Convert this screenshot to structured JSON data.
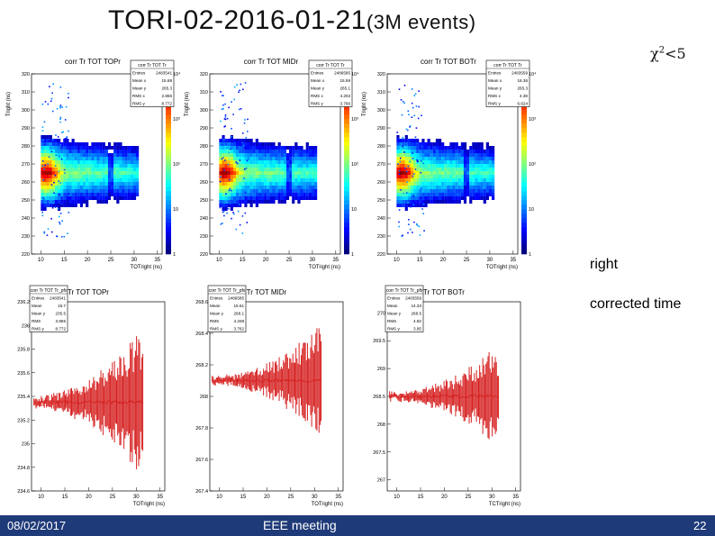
{
  "header": {
    "title_main": "TORI-02-2016-01-21",
    "title_sub": "(3M events)",
    "chi_text": "χ",
    "chi_sup": "2",
    "chi_rest": "<5"
  },
  "labels": {
    "right": "right",
    "corrected": "corrected time"
  },
  "footer": {
    "date": "08/02/2017",
    "meeting": "EEE meeting",
    "page": "22"
  },
  "colors": {
    "footer_bar": "#1f3a78",
    "hist_line": "#d62020"
  },
  "chart_data": [
    {
      "type": "heatmap",
      "title": "corr Tr TOT TOPr",
      "xlabel": "TOTright (ns)",
      "ylabel": "Tright (ns)",
      "xlim": [
        8,
        36
      ],
      "ylim": [
        220,
        320
      ],
      "xticks": [
        "10",
        "15",
        "20",
        "25",
        "30",
        "35"
      ],
      "yticks": [
        "220",
        "230",
        "240",
        "250",
        "260",
        "270",
        "280",
        "290",
        "300",
        "310",
        "320"
      ],
      "zticks": [
        "1",
        "10",
        "10²",
        "10³",
        "10⁴"
      ],
      "stats": {
        "name": "corr Tr TOT Tr",
        "rows": [
          [
            "Entries",
            "2483541"
          ],
          [
            "Mean x",
            "15.68"
          ],
          [
            "Mean y",
            "265.3"
          ],
          [
            "RMS x",
            "2.855"
          ],
          [
            "RMS y",
            "8.772"
          ]
        ]
      },
      "band": {
        "x_start": 10,
        "x_end": 31,
        "y_center": 265,
        "y_halfwidth": 18,
        "peak_x": 11
      }
    },
    {
      "type": "heatmap",
      "title": "corr Tr TOT MIDr",
      "xlabel": "TOTright (ns)",
      "ylabel": "Tright (ns)",
      "xlim": [
        8,
        36
      ],
      "ylim": [
        220,
        320
      ],
      "xticks": [
        "10",
        "15",
        "20",
        "25",
        "30",
        "35"
      ],
      "yticks": [
        "220",
        "230",
        "240",
        "250",
        "260",
        "270",
        "280",
        "290",
        "300",
        "310",
        "320"
      ],
      "zticks": [
        "1",
        "10",
        "10²",
        "10³",
        "10⁴"
      ],
      "stats": {
        "name": "corr Tr TOT Tr",
        "rows": [
          [
            "Entries",
            "2486585"
          ],
          [
            "Mean x",
            "15.59"
          ],
          [
            "Mean y",
            "265.1"
          ],
          [
            "RMS x",
            "4.203"
          ],
          [
            "RMS y",
            "3.766"
          ]
        ]
      },
      "band": {
        "x_start": 10,
        "x_end": 31,
        "y_center": 265,
        "y_halfwidth": 18,
        "peak_x": 11
      }
    },
    {
      "type": "heatmap",
      "title": "corr Tr TOT BOTr",
      "xlabel": "TOTright (ns)",
      "ylabel": "Tright (ns)",
      "xlim": [
        8,
        36
      ],
      "ylim": [
        220,
        320
      ],
      "xticks": [
        "10",
        "15",
        "20",
        "25",
        "30",
        "35"
      ],
      "yticks": [
        "220",
        "230",
        "240",
        "250",
        "260",
        "270",
        "280",
        "290",
        "300",
        "310",
        "320"
      ],
      "zticks": [
        "1",
        "10",
        "10²",
        "10³",
        "10⁴"
      ],
      "stats": {
        "name": "corr Tr TOT Tr",
        "rows": [
          [
            "Entries",
            "2483559"
          ],
          [
            "Mean x",
            "16.36"
          ],
          [
            "Mean y",
            "265.3"
          ],
          [
            "RMS x",
            "4.38"
          ],
          [
            "RMS y",
            "6.624"
          ]
        ]
      },
      "band": {
        "x_start": 10,
        "x_end": 31,
        "y_center": 265,
        "y_halfwidth": 18,
        "peak_x": 11
      }
    },
    {
      "type": "line",
      "title": "corr Tr TOT TOPr",
      "xlabel": "TOTright (ns)",
      "xlim": [
        8,
        36
      ],
      "ylim": [
        234.6,
        236.2
      ],
      "xticks": [
        "10",
        "15",
        "20",
        "25",
        "30",
        "35"
      ],
      "yticks": [
        "234.6",
        "234.8",
        "235",
        "235.2",
        "235.4",
        "235.6",
        "235.8",
        "236",
        "236.2"
      ],
      "stats": {
        "name": "corr Tr TOT Tr_pfx",
        "rows": [
          [
            "Entries",
            "2483541"
          ],
          [
            "Mean",
            "15.7"
          ],
          [
            "Mean y",
            "235.5"
          ],
          [
            "RMS",
            "3.855"
          ],
          [
            "RMS y",
            "8.772"
          ]
        ]
      },
      "center": 235.35,
      "amp_start": 0.06,
      "amp_end": 0.8
    },
    {
      "type": "line",
      "title": "corr Tr TOT MIDr",
      "xlabel": "TOTright (ns)",
      "xlim": [
        8,
        36
      ],
      "ylim": [
        267.4,
        268.6
      ],
      "xticks": [
        "10",
        "15",
        "20",
        "25",
        "30",
        "35"
      ],
      "yticks": [
        "267.4",
        "267.6",
        "267.8",
        "268",
        "268.2",
        "268.4",
        "268.6"
      ],
      "stats": {
        "name": "corr Tr TOT Tr_pfx",
        "rows": [
          [
            "Entries",
            "2486585"
          ],
          [
            "Mean",
            "15.61"
          ],
          [
            "Mean y",
            "268.1"
          ],
          [
            "RMS",
            "4.208"
          ],
          [
            "RMS y",
            "3.762"
          ]
        ]
      },
      "center": 268.1,
      "amp_start": 0.04,
      "amp_end": 0.6
    },
    {
      "type": "line",
      "title": "corr Tr TOT BOTr",
      "xlabel": "TCTright (ns)",
      "xlim": [
        8,
        36
      ],
      "ylim": [
        266.9,
        268.1
      ],
      "xticks": [
        "10",
        "15",
        "20",
        "25",
        "30",
        "35"
      ],
      "yticks": [
        "267",
        "267.5",
        "268",
        "268.5",
        "269",
        "269.5",
        "270"
      ],
      "ylim_display": [
        266.8,
        270.2
      ],
      "stats": {
        "name": "corr Tr TOT Tr_pfx",
        "rows": [
          [
            "Entries",
            "2483559"
          ],
          [
            "Mean",
            "14.33"
          ],
          [
            "Mean y",
            "268.5"
          ],
          [
            "RMS",
            "4.82"
          ],
          [
            "RMS y",
            "3.85"
          ]
        ]
      },
      "center": 268.5,
      "amp_start": 0.04,
      "amp_end": 0.55
    }
  ]
}
